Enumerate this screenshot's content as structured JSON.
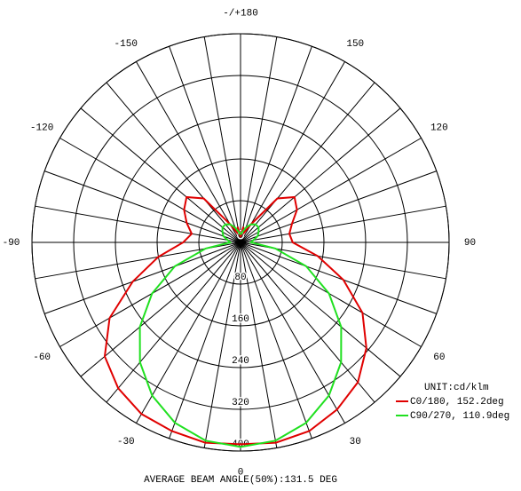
{
  "chart_data": {
    "type": "polar",
    "unit": "UNIT:cd/klm",
    "footer": "AVERAGE BEAM ANGLE(50%):131.5 DEG",
    "x": [
      -180,
      -170,
      -160,
      -150,
      -140,
      -130,
      -120,
      -110,
      -100,
      -90,
      -80,
      -70,
      -60,
      -50,
      -40,
      -30,
      -20,
      -10,
      0,
      10,
      20,
      30,
      40,
      50,
      60,
      70,
      80,
      90,
      100,
      110,
      120,
      130,
      140,
      150,
      160,
      170,
      180
    ],
    "series": [
      {
        "name": "C0/180, 152.2deg",
        "color": "#e00000",
        "values": [
          10,
          30,
          20,
          40,
          110,
          135,
          125,
          110,
          95,
          110,
          160,
          220,
          290,
          340,
          365,
          380,
          385,
          390,
          387,
          390,
          385,
          370,
          350,
          315,
          270,
          210,
          150,
          100,
          95,
          105,
          125,
          135,
          110,
          40,
          20,
          30,
          10
        ]
      },
      {
        "name": "C90/270, 110.9deg",
        "color": "#20e020",
        "values": [
          15,
          20,
          30,
          40,
          45,
          45,
          40,
          35,
          25,
          20,
          68,
          134,
          196,
          252,
          300,
          339,
          368,
          386,
          392,
          386,
          368,
          339,
          300,
          252,
          196,
          134,
          68,
          20,
          25,
          35,
          40,
          45,
          45,
          40,
          30,
          20,
          15
        ]
      }
    ],
    "rlim": [
      0,
      400
    ],
    "rticks": [
      0,
      80,
      160,
      240,
      320,
      400
    ],
    "angle_ticks": [
      {
        "value": 180,
        "label": "-/+180"
      },
      150,
      120,
      90,
      60,
      30,
      0,
      -30,
      -60,
      -90,
      -120,
      -150
    ],
    "grid": true
  }
}
